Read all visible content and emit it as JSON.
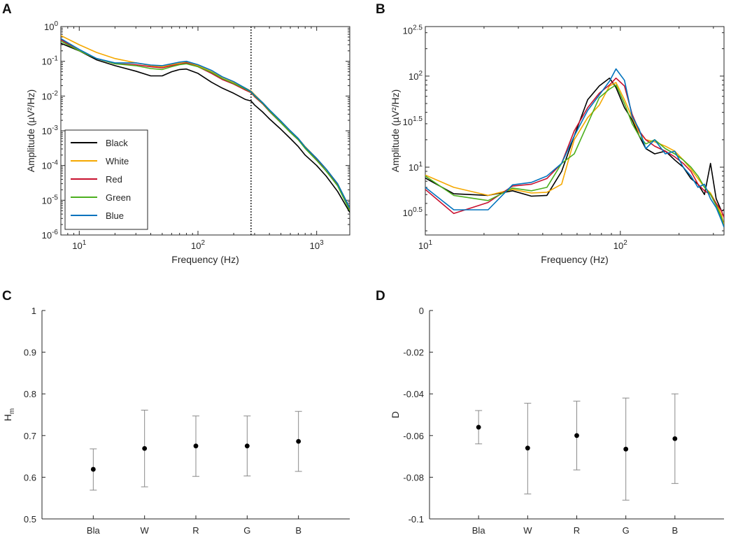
{
  "chart_data": [
    {
      "panel": "A",
      "type": "line",
      "xscale": "log",
      "yscale": "log",
      "xlabel": "Frequency (Hz)",
      "ylabel": "Amplitude (µV²/Hz)",
      "xlim": [
        7,
        1900
      ],
      "ylim": [
        1e-06,
        1
      ],
      "x_ticks": [
        {
          "value": 10,
          "base": "10",
          "exp": "1"
        },
        {
          "value": 100,
          "base": "10",
          "exp": "2"
        },
        {
          "value": 1000,
          "base": "10",
          "exp": "3"
        }
      ],
      "y_ticks": [
        {
          "value": 1e-06,
          "base": "10",
          "exp": "-6"
        },
        {
          "value": 1e-05,
          "base": "10",
          "exp": "-5"
        },
        {
          "value": 0.0001,
          "base": "10",
          "exp": "-4"
        },
        {
          "value": 0.001,
          "base": "10",
          "exp": "-3"
        },
        {
          "value": 0.01,
          "base": "10",
          "exp": "-2"
        },
        {
          "value": 0.1,
          "base": "10",
          "exp": "-1"
        },
        {
          "value": 1,
          "base": "10",
          "exp": "0"
        }
      ],
      "vline_x": 280,
      "legend_position": "bottom-left",
      "series": [
        {
          "name": "Black",
          "color": "#000000",
          "x": [
            7,
            10,
            14,
            20,
            30,
            40,
            50,
            60,
            70,
            80,
            100,
            130,
            160,
            200,
            250,
            280,
            300,
            350,
            400,
            500,
            600,
            700,
            800,
            1000,
            1200,
            1500,
            1900
          ],
          "y": [
            0.33,
            0.2,
            0.11,
            0.075,
            0.052,
            0.038,
            0.038,
            0.05,
            0.058,
            0.06,
            0.045,
            0.025,
            0.017,
            0.012,
            0.008,
            0.0072,
            0.0055,
            0.0035,
            0.0022,
            0.0011,
            0.0006,
            0.00035,
            0.0002,
            0.0001,
            5e-05,
            1.8e-05,
            4.5e-06
          ]
        },
        {
          "name": "White",
          "color": "#F5A800",
          "x": [
            7,
            10,
            14,
            20,
            30,
            40,
            50,
            60,
            70,
            80,
            100,
            130,
            160,
            200,
            250,
            280,
            300,
            350,
            400,
            500,
            600,
            700,
            800,
            1000,
            1200,
            1500,
            1900
          ],
          "y": [
            0.55,
            0.3,
            0.18,
            0.12,
            0.09,
            0.075,
            0.07,
            0.08,
            0.088,
            0.095,
            0.075,
            0.05,
            0.035,
            0.025,
            0.017,
            0.014,
            0.011,
            0.0065,
            0.004,
            0.0019,
            0.001,
            0.0006,
            0.00035,
            0.00016,
            8e-05,
            3e-05,
            6e-06
          ]
        },
        {
          "name": "Red",
          "color": "#C8102E",
          "x": [
            7,
            10,
            14,
            20,
            30,
            40,
            50,
            60,
            70,
            80,
            100,
            130,
            160,
            200,
            250,
            280,
            300,
            350,
            400,
            500,
            600,
            700,
            800,
            1000,
            1200,
            1500,
            1900
          ],
          "y": [
            0.42,
            0.2,
            0.12,
            0.085,
            0.08,
            0.07,
            0.065,
            0.075,
            0.082,
            0.09,
            0.07,
            0.045,
            0.03,
            0.022,
            0.015,
            0.0125,
            0.0095,
            0.006,
            0.0036,
            0.0017,
            0.0009,
            0.00055,
            0.00032,
            0.00015,
            7e-05,
            2.8e-05,
            5.5e-06
          ]
        },
        {
          "name": "Green",
          "color": "#4CAF1E",
          "x": [
            7,
            10,
            14,
            20,
            30,
            40,
            50,
            60,
            70,
            80,
            100,
            130,
            160,
            200,
            250,
            280,
            300,
            350,
            400,
            500,
            600,
            700,
            800,
            1000,
            1200,
            1500,
            1900
          ],
          "y": [
            0.38,
            0.2,
            0.12,
            0.085,
            0.075,
            0.062,
            0.058,
            0.07,
            0.08,
            0.085,
            0.07,
            0.048,
            0.032,
            0.023,
            0.016,
            0.013,
            0.01,
            0.0062,
            0.0037,
            0.0017,
            0.0009,
            0.00055,
            0.00031,
            0.00014,
            7e-05,
            2.6e-05,
            5e-06
          ]
        },
        {
          "name": "Blue",
          "color": "#0072BD",
          "x": [
            7,
            10,
            14,
            20,
            30,
            40,
            50,
            60,
            70,
            80,
            100,
            130,
            160,
            200,
            250,
            280,
            300,
            350,
            400,
            500,
            600,
            700,
            800,
            1000,
            1200,
            1500,
            1900
          ],
          "y": [
            0.45,
            0.22,
            0.12,
            0.09,
            0.09,
            0.078,
            0.075,
            0.085,
            0.095,
            0.1,
            0.08,
            0.055,
            0.036,
            0.026,
            0.017,
            0.0135,
            0.0105,
            0.0065,
            0.004,
            0.0019,
            0.001,
            0.0006,
            0.00034,
            0.00016,
            8e-05,
            3e-05,
            6e-06
          ]
        }
      ]
    },
    {
      "panel": "B",
      "type": "line",
      "xscale": "log",
      "yscale": "log",
      "xlabel": "Frequency (Hz)",
      "ylabel": "Amplitude (µV²/Hz)",
      "xlim": [
        10,
        340
      ],
      "ylim": [
        1.8,
        350
      ],
      "x_ticks": [
        {
          "value": 10,
          "base": "10",
          "exp": "1"
        },
        {
          "value": 100,
          "base": "10",
          "exp": "2"
        }
      ],
      "y_ticks": [
        {
          "value": 3.1623,
          "base": "10",
          "exp": "0.5"
        },
        {
          "value": 10,
          "base": "10",
          "exp": "1"
        },
        {
          "value": 31.623,
          "base": "10",
          "exp": "1.5"
        },
        {
          "value": 100,
          "base": "10",
          "exp": "2"
        },
        {
          "value": 316.23,
          "base": "10",
          "exp": "2.5"
        }
      ],
      "series": [
        {
          "name": "Black",
          "color": "#000000",
          "x": [
            10,
            14,
            21,
            28,
            35,
            42,
            50,
            58,
            68,
            78,
            88,
            95,
            105,
            115,
            125,
            135,
            150,
            170,
            190,
            210,
            230,
            250,
            270,
            290,
            310,
            330,
            340
          ],
          "y": [
            7.6,
            5.1,
            4.9,
            5.5,
            4.8,
            4.9,
            9,
            22,
            55,
            78,
            95,
            75,
            45,
            33,
            22,
            16,
            14,
            15,
            12,
            10,
            7.5,
            6.5,
            5,
            11,
            4.5,
            3.3,
            3.4
          ]
        },
        {
          "name": "White",
          "color": "#F5A800",
          "x": [
            10,
            14,
            21,
            28,
            35,
            42,
            50,
            58,
            68,
            78,
            88,
            95,
            105,
            115,
            125,
            135,
            150,
            170,
            190,
            210,
            230,
            250,
            270,
            290,
            310,
            330,
            340
          ],
          "y": [
            8.2,
            6,
            4.9,
            5.7,
            5.2,
            5.3,
            6.5,
            20,
            35,
            48,
            78,
            85,
            55,
            35,
            24,
            20,
            19,
            17,
            15,
            12,
            9.5,
            7.5,
            6,
            5.2,
            4,
            3,
            2.3
          ]
        },
        {
          "name": "Red",
          "color": "#C8102E",
          "x": [
            10,
            14,
            21,
            28,
            35,
            42,
            50,
            58,
            68,
            78,
            88,
            95,
            105,
            115,
            125,
            135,
            150,
            170,
            190,
            210,
            230,
            250,
            270,
            290,
            310,
            330,
            340
          ],
          "y": [
            5.7,
            3.1,
            4.1,
            6.2,
            6.5,
            7.5,
            11,
            25,
            45,
            65,
            80,
            95,
            78,
            38,
            25,
            20,
            17,
            15,
            13,
            11,
            9,
            6.5,
            5.5,
            5,
            4,
            3.3,
            2.8
          ]
        },
        {
          "name": "Green",
          "color": "#4CAF1E",
          "x": [
            10,
            14,
            21,
            28,
            35,
            42,
            50,
            58,
            68,
            78,
            88,
            95,
            105,
            115,
            125,
            135,
            150,
            170,
            190,
            210,
            230,
            250,
            270,
            290,
            310,
            330,
            340
          ],
          "y": [
            8,
            4.9,
            4.3,
            5.9,
            5.5,
            6,
            11,
            14,
            30,
            58,
            72,
            80,
            50,
            30,
            22,
            18,
            20,
            16,
            14,
            12,
            10,
            8,
            6,
            5,
            3.8,
            2.8,
            2.2
          ]
        },
        {
          "name": "Blue",
          "color": "#0072BD",
          "x": [
            10,
            14,
            21,
            28,
            35,
            42,
            50,
            58,
            68,
            78,
            88,
            95,
            105,
            115,
            125,
            135,
            150,
            170,
            190,
            210,
            230,
            250,
            270,
            290,
            310,
            330,
            340
          ],
          "y": [
            6,
            3.4,
            3.4,
            6.4,
            6.8,
            8,
            11,
            22,
            42,
            62,
            88,
            120,
            90,
            36,
            26,
            16,
            20,
            14,
            15,
            10,
            8,
            6,
            6.5,
            4.5,
            3.6,
            2.6,
            2.2
          ]
        }
      ]
    },
    {
      "panel": "C",
      "type": "scatter",
      "subtype": "errorbar",
      "categories": [
        "Bla",
        "W",
        "R",
        "G",
        "B"
      ],
      "values": [
        0.619,
        0.669,
        0.675,
        0.675,
        0.686
      ],
      "error_low": [
        0.569,
        0.577,
        0.602,
        0.603,
        0.614
      ],
      "error_high": [
        0.668,
        0.761,
        0.747,
        0.747,
        0.758
      ],
      "ylim": [
        0.5,
        1
      ],
      "y_ticks": [
        "0.5",
        "0.6",
        "0.7",
        "0.8",
        "0.9",
        "1"
      ],
      "ylabel_base": "H",
      "ylabel_sub": "m",
      "xlabel": ""
    },
    {
      "panel": "D",
      "type": "scatter",
      "subtype": "errorbar",
      "categories": [
        "Bla",
        "W",
        "R",
        "G",
        "B"
      ],
      "values": [
        -0.056,
        -0.066,
        -0.06,
        -0.0665,
        -0.0615
      ],
      "error_low": [
        -0.064,
        -0.088,
        -0.0765,
        -0.091,
        -0.083
      ],
      "error_high": [
        -0.048,
        -0.0445,
        -0.0435,
        -0.042,
        -0.04
      ],
      "ylim": [
        -0.1,
        0
      ],
      "y_ticks": [
        "-0.1",
        "-0.08",
        "-0.06",
        "-0.04",
        "-0.02",
        "0"
      ],
      "ylabel": "D",
      "xlabel": ""
    }
  ]
}
